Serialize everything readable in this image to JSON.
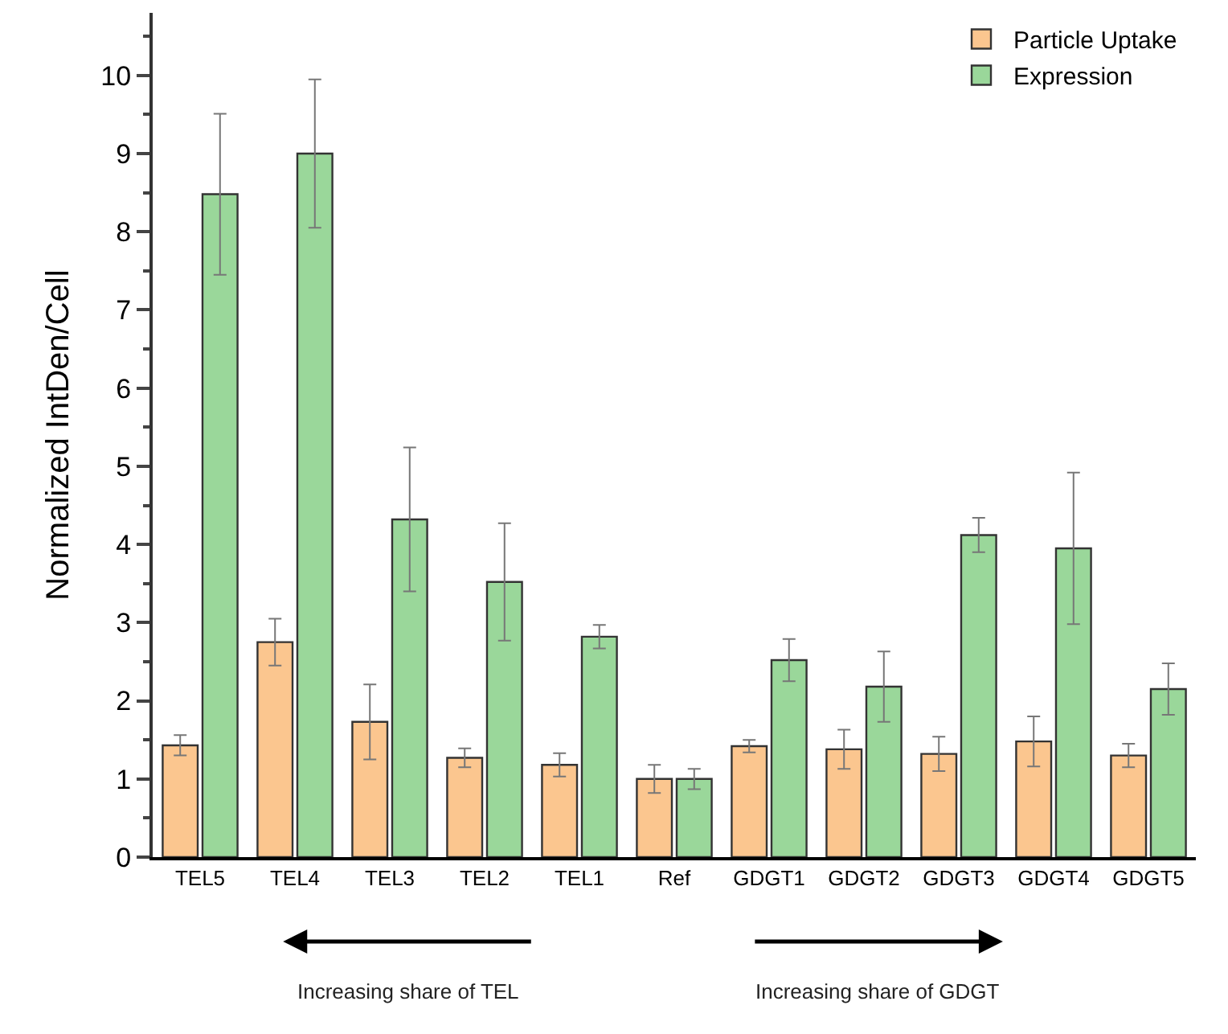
{
  "chart_data": {
    "type": "bar",
    "ylabel": "Normalized IntDen/Cell",
    "categories": [
      "TEL5",
      "TEL4",
      "TEL3",
      "TEL2",
      "TEL1",
      "Ref",
      "GDGT1",
      "GDGT2",
      "GDGT3",
      "GDGT4",
      "GDGT5"
    ],
    "series": [
      {
        "name": "Particle Uptake",
        "color": "#fbc68f",
        "values": [
          1.43,
          2.75,
          1.73,
          1.27,
          1.18,
          1.0,
          1.42,
          1.38,
          1.32,
          1.48,
          1.3
        ],
        "errors": [
          0.13,
          0.3,
          0.48,
          0.12,
          0.15,
          0.18,
          0.08,
          0.25,
          0.22,
          0.32,
          0.15
        ]
      },
      {
        "name": "Expression",
        "color": "#9ad79a",
        "values": [
          8.48,
          9.0,
          4.32,
          3.52,
          2.82,
          1.0,
          2.52,
          2.18,
          4.12,
          3.95,
          2.15
        ],
        "errors": [
          1.03,
          0.95,
          0.92,
          0.75,
          0.15,
          0.13,
          0.27,
          0.45,
          0.22,
          0.97,
          0.33
        ]
      }
    ],
    "ylim": [
      0,
      10.8
    ],
    "yticks": [
      0,
      1,
      2,
      3,
      4,
      5,
      6,
      7,
      8,
      9,
      10
    ],
    "grid": false,
    "legend": "top right",
    "annotations": [
      "Increasing share of TEL",
      "Increasing share of GDGT"
    ]
  }
}
